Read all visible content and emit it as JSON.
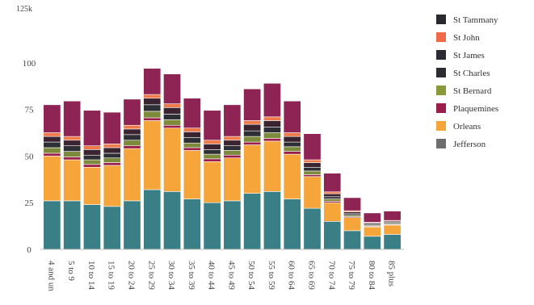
{
  "chart_data": {
    "type": "bar",
    "stacked": true,
    "categories": [
      "4 and un",
      "5 to 9",
      "10 to 14",
      "15 to 19",
      "20 to 24",
      "25 to 29",
      "30 to 34",
      "35 to 39",
      "40 to 44",
      "45 to 49",
      "50 to 54",
      "55 to 59",
      "60 to 64",
      "65 to 69",
      "70 to 74",
      "75 to 79",
      "80 to 84",
      "85 plus"
    ],
    "series": [
      {
        "name": "Jefferson",
        "color": "#3a7f86",
        "values": [
          26,
          26,
          24,
          23,
          26,
          32,
          31,
          27,
          25,
          26,
          30,
          31,
          27,
          22,
          15,
          10,
          7,
          8
        ]
      },
      {
        "name": "Orleans",
        "color": "#f6a53a",
        "values": [
          24,
          22,
          20,
          22,
          28,
          37,
          34,
          26,
          22,
          23,
          26,
          27,
          24,
          17,
          10,
          7,
          5,
          5
        ]
      },
      {
        "name": "Plaquemines",
        "color": "#9a1d4a",
        "values": [
          1.5,
          1.5,
          1.5,
          1.5,
          1.5,
          1.5,
          1.5,
          1.5,
          1.5,
          1.5,
          1.5,
          1.5,
          1.5,
          1,
          0.8,
          0.5,
          0.4,
          0.4
        ]
      },
      {
        "name": "St Bernard",
        "color": "#7d8a3c",
        "values": [
          3,
          3,
          2.5,
          2.5,
          3,
          3.5,
          3,
          2.5,
          2.5,
          2.5,
          3,
          3,
          2.5,
          2,
          1.2,
          0.8,
          0.5,
          0.5
        ]
      },
      {
        "name": "St Charles",
        "color": "#2d2f34",
        "values": [
          3,
          3,
          2.5,
          2.5,
          3,
          3.5,
          3,
          3,
          2.5,
          2.5,
          3,
          3,
          2.5,
          2,
          1.2,
          0.8,
          0.5,
          0.5
        ]
      },
      {
        "name": "St James",
        "color": "#3a2430",
        "values": [
          3,
          3,
          3,
          3,
          3,
          3.5,
          3.5,
          3,
          3,
          3,
          3.5,
          3.5,
          3,
          2.5,
          1.6,
          1,
          0.7,
          0.7
        ]
      },
      {
        "name": "St John",
        "color": "#ef7a4a",
        "values": [
          2,
          2,
          2,
          2,
          2,
          2,
          2,
          2,
          2,
          2,
          2,
          2,
          2,
          1.5,
          1,
          0.6,
          0.4,
          0.4
        ]
      },
      {
        "name": "St Tammany",
        "color": "#8e2454",
        "values": [
          15,
          19,
          19,
          17,
          14,
          14,
          16,
          16,
          16,
          17,
          17,
          18,
          17,
          14,
          10,
          7,
          5,
          5
        ]
      }
    ],
    "legend_order": [
      "St Tammany",
      "St John",
      "St James",
      "St Charles",
      "St Bernard",
      "Plaquemines",
      "Orleans",
      "Jefferson"
    ],
    "legend_colors": {
      "St Tammany": "#2a2a2e",
      "St John": "#f06a4a",
      "St James": "#2e2a33",
      "St Charles": "#2c2c31",
      "St Bernard": "#8a9a3a",
      "Plaquemines": "#9a1d4a",
      "Orleans": "#f6a53a",
      "Jefferson": "#6e6e6e"
    },
    "yticks": [
      0,
      25,
      50,
      75,
      100
    ],
    "ytick_labels": [
      "0",
      "25",
      "50",
      "75",
      "100"
    ],
    "ylim": [
      0,
      125
    ],
    "top_label": "125k",
    "legend_position": "top-right",
    "grid": false
  }
}
